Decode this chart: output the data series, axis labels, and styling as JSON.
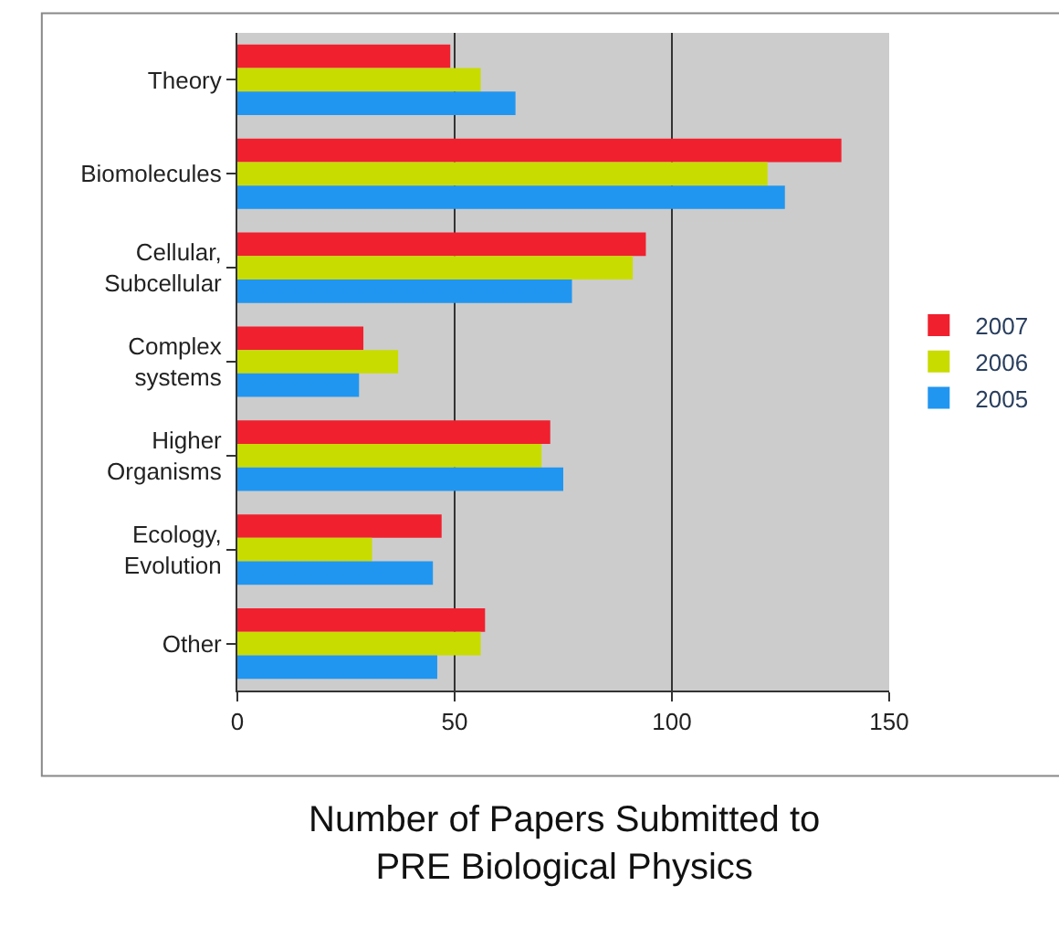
{
  "chart_data": {
    "type": "bar",
    "orientation": "horizontal",
    "title": "Number of Papers Submitted to\nPRE Biological Physics",
    "categories": [
      "Theory",
      "Biomolecules",
      "Cellular,\nSubcellular",
      "Complex\nsystems",
      "Higher\nOrganisms",
      "Ecology,\nEvolution",
      "Other"
    ],
    "series": [
      {
        "name": "2007",
        "color": "#f0202e",
        "values": [
          49,
          139,
          94,
          29,
          72,
          47,
          57
        ]
      },
      {
        "name": "2006",
        "color": "#c8dc00",
        "values": [
          56,
          122,
          91,
          37,
          70,
          31,
          56
        ]
      },
      {
        "name": "2005",
        "color": "#2196f0",
        "values": [
          64,
          126,
          77,
          28,
          75,
          45,
          46
        ]
      }
    ],
    "xlim": [
      0,
      150
    ],
    "xticks": [
      0,
      50,
      100,
      150
    ],
    "grid": "x",
    "legend": "right"
  }
}
